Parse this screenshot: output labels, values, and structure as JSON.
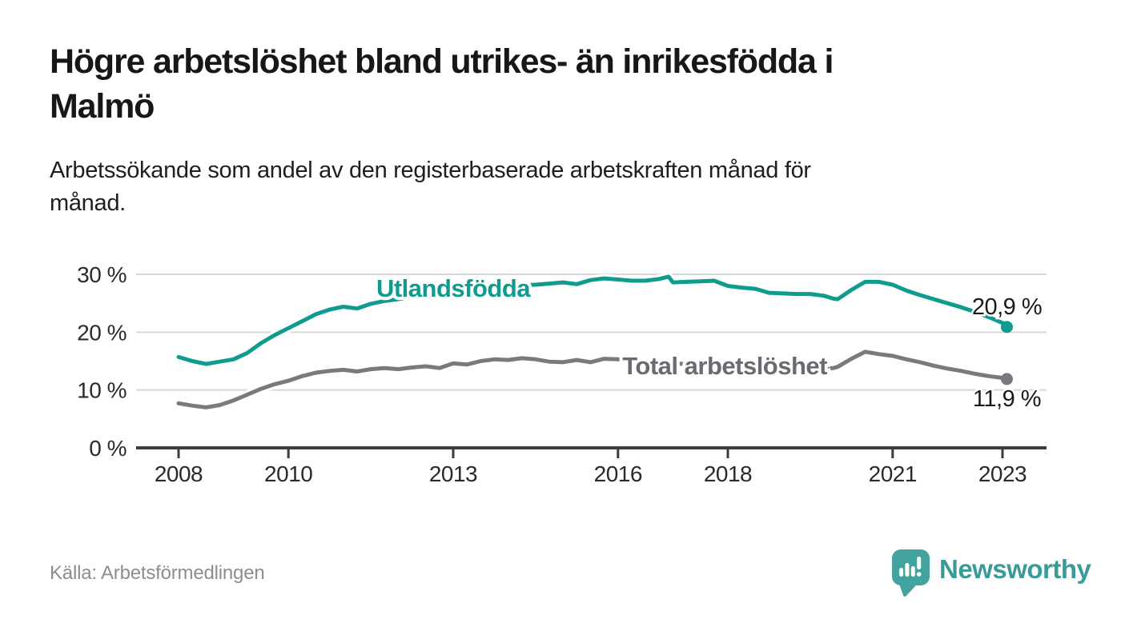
{
  "header": {
    "title": "Högre arbetslöshet bland utrikes- än inrikesfödda i\nMalmö",
    "subtitle": "Arbetssökande som andel av den registerbaserade arbetskraften månad för\nmånad."
  },
  "footer": {
    "source": "Källa: Arbetsförmedlingen",
    "brand": "Newsworthy"
  },
  "colors": {
    "accent_teal": "#0f9c8f",
    "line_gray": "#7b797e",
    "gray_label": "#6c6a70",
    "brand_teal": "#42a39f",
    "brand_text": "#3a9a97",
    "grid": "#d8d8d8",
    "axis": "#3c3c3c",
    "tick_text": "#2a2a2a",
    "value_label_text": "#1a1a1a"
  },
  "chart_data": {
    "type": "line",
    "title": "",
    "xlabel": "",
    "ylabel": "",
    "unit": "%",
    "grid": "horizontal",
    "legend_position": "inline-labels",
    "xlim": [
      2007.25,
      2023.8
    ],
    "ylim": [
      0,
      31
    ],
    "x_ticks": [
      2008,
      2010,
      2013,
      2016,
      2018,
      2021,
      2023
    ],
    "y_ticks": [
      {
        "value": 0,
        "label": "0 %"
      },
      {
        "value": 10,
        "label": "10 %"
      },
      {
        "value": 20,
        "label": "20 %"
      },
      {
        "value": 30,
        "label": "30 %"
      }
    ],
    "x": [
      2008,
      2008.25,
      2008.5,
      2008.75,
      2009,
      2009.25,
      2009.5,
      2009.75,
      2010,
      2010.25,
      2010.5,
      2010.75,
      2011,
      2011.25,
      2011.5,
      2011.75,
      2012,
      2012.25,
      2012.5,
      2012.75,
      2013,
      2013.25,
      2013.5,
      2013.75,
      2014,
      2014.25,
      2014.5,
      2014.75,
      2015,
      2015.25,
      2015.5,
      2015.75,
      2016,
      2016.25,
      2016.5,
      2016.75,
      2016.92,
      2017,
      2017.25,
      2017.5,
      2017.75,
      2018,
      2018.25,
      2018.5,
      2018.75,
      2019,
      2019.25,
      2019.5,
      2019.75,
      2019.92,
      2020,
      2020.25,
      2020.5,
      2020.75,
      2021,
      2021.25,
      2021.5,
      2021.75,
      2022,
      2022.25,
      2022.5,
      2022.75,
      2023,
      2023.08
    ],
    "series": [
      {
        "name": "Utlandsfödda",
        "color": "#0f9c8f",
        "label_color": "#0f9c8f",
        "end_label": "20,9 %",
        "end_value": 20.9,
        "label_pos": {
          "x": 2011.6,
          "value": 26.1
        },
        "end_label_dy": -16,
        "values": [
          15.7,
          15.0,
          14.5,
          14.9,
          15.3,
          16.4,
          18.1,
          19.5,
          20.7,
          21.9,
          23.1,
          23.9,
          24.4,
          24.1,
          24.9,
          25.4,
          25.7,
          26.2,
          26.6,
          26.3,
          27.2,
          27.5,
          27.7,
          27.9,
          28.0,
          28.1,
          28.2,
          28.4,
          28.6,
          28.3,
          29.0,
          29.3,
          29.1,
          28.9,
          28.9,
          29.2,
          29.6,
          28.6,
          28.7,
          28.8,
          28.9,
          28.0,
          27.7,
          27.5,
          26.8,
          26.7,
          26.6,
          26.6,
          26.3,
          25.8,
          25.7,
          27.3,
          28.7,
          28.7,
          28.2,
          27.2,
          26.4,
          25.7,
          25.0,
          24.3,
          23.5,
          22.6,
          21.6,
          20.9
        ]
      },
      {
        "name": "Total arbetslöshet",
        "color": "#7b797e",
        "label_color": "#6c6a70",
        "end_label": "11,9 %",
        "end_value": 11.9,
        "label_pos": {
          "x": 2016.08,
          "value": 12.7
        },
        "end_label_dy": 34,
        "values": [
          7.7,
          7.3,
          7.0,
          7.4,
          8.2,
          9.2,
          10.2,
          11.0,
          11.6,
          12.4,
          13.0,
          13.3,
          13.5,
          13.2,
          13.6,
          13.8,
          13.6,
          13.9,
          14.1,
          13.8,
          14.6,
          14.4,
          15.0,
          15.3,
          15.2,
          15.5,
          15.3,
          14.9,
          14.8,
          15.2,
          14.8,
          15.4,
          15.3,
          15.1,
          14.9,
          14.7,
          14.6,
          14.6,
          14.5,
          14.4,
          14.4,
          14.3,
          14.2,
          14.1,
          13.9,
          13.8,
          13.7,
          13.6,
          13.7,
          13.8,
          14.0,
          15.4,
          16.6,
          16.2,
          15.9,
          15.3,
          14.8,
          14.2,
          13.7,
          13.3,
          12.8,
          12.4,
          12.1,
          11.9
        ]
      }
    ]
  }
}
